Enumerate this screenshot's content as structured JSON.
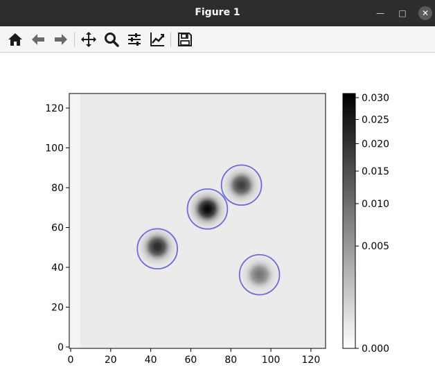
{
  "window": {
    "title": "Figure 1",
    "minimize_icon": "minimize-icon",
    "maximize_icon": "maximize-icon",
    "close_icon": "close-icon"
  },
  "toolbar": {
    "tools": [
      {
        "name": "home-icon"
      },
      {
        "name": "back-arrow-icon"
      },
      {
        "name": "forward-arrow-icon"
      },
      {
        "name": "pan-icon"
      },
      {
        "name": "zoom-icon"
      },
      {
        "name": "configure-subplots-icon"
      },
      {
        "name": "edit-axis-icon"
      },
      {
        "name": "save-icon"
      }
    ]
  },
  "chart_data": {
    "type": "heatmap",
    "colormap": "gray_r",
    "x_ticks": [
      "0",
      "20",
      "40",
      "60",
      "80",
      "100",
      "120"
    ],
    "y_ticks": [
      "0",
      "20",
      "40",
      "60",
      "80",
      "100",
      "120"
    ],
    "xlim": [
      0,
      128
    ],
    "ylim": [
      0,
      128
    ],
    "colorbar": {
      "ticks": [
        "0.000",
        "0.005",
        "0.010",
        "0.015",
        "0.020",
        "0.025",
        "0.030"
      ],
      "range": [
        0,
        0.031
      ],
      "scale": "power"
    },
    "blobs": [
      {
        "x": 69,
        "y": 70,
        "peak": 0.03
      },
      {
        "x": 44,
        "y": 51,
        "peak": 0.022
      },
      {
        "x": 86,
        "y": 82,
        "peak": 0.018
      },
      {
        "x": 95,
        "y": 37,
        "peak": 0.009
      }
    ],
    "circles": [
      {
        "x": 69,
        "y": 70,
        "r": 10
      },
      {
        "x": 44,
        "y": 50,
        "r": 10
      },
      {
        "x": 86,
        "y": 82,
        "r": 10
      },
      {
        "x": 95,
        "y": 37,
        "r": 10
      }
    ],
    "circle_color": "#6b6bdc"
  }
}
